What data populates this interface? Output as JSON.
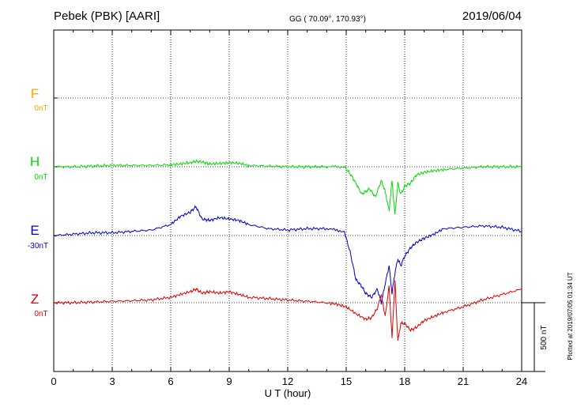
{
  "header": {
    "station": "Pebek (PBK)  [AARI]",
    "coords": "GG ( 70.09°, 170.93°)",
    "date": "2019/06/04"
  },
  "x_axis": {
    "label": "U T (hour)",
    "ticks": [
      "0",
      "3",
      "6",
      "9",
      "12",
      "15",
      "18",
      "21",
      "24"
    ]
  },
  "scale_bar": {
    "label": "500 nT",
    "value_nT": 500
  },
  "plotted_stamp": "Plotted at 2019/07/05 01:34 UT",
  "colors": {
    "F": "#FFA500",
    "H": "#00DD00",
    "E": "#0000CC",
    "Z": "#DD0000",
    "grid": "#000000"
  },
  "chart_data": {
    "type": "line",
    "title": "Pebek (PBK)  [AARI]",
    "xlabel": "U T (hour)",
    "ylabel": "",
    "xlim": [
      0,
      24
    ],
    "grid": true,
    "units": "nT",
    "series": [
      {
        "name": "F",
        "offset_label": "0nT",
        "color": "#FFA500",
        "baseline_nT": 0,
        "x": [],
        "values": []
      },
      {
        "name": "H",
        "offset_label": "0nT",
        "color": "#00DD00",
        "baseline_nT": 0,
        "x": [
          0,
          1,
          2,
          3,
          4,
          5,
          6,
          6.5,
          7,
          7.3,
          7.6,
          8,
          8.5,
          9,
          9.5,
          10,
          11,
          12,
          13,
          14,
          14.9,
          15.2,
          15.5,
          15.8,
          16,
          16.2,
          16.5,
          16.8,
          17,
          17.2,
          17.35,
          17.5,
          17.65,
          17.8,
          18,
          18.3,
          18.6,
          19,
          19.5,
          20,
          21,
          22,
          23,
          24
        ],
        "values": [
          0,
          0,
          5,
          10,
          10,
          10,
          15,
          20,
          30,
          40,
          35,
          20,
          25,
          30,
          25,
          10,
          5,
          0,
          0,
          0,
          0,
          -50,
          -120,
          -200,
          -180,
          -160,
          -220,
          -100,
          -180,
          -320,
          -100,
          -350,
          -120,
          -200,
          -140,
          -120,
          -60,
          -40,
          -30,
          -20,
          -10,
          0,
          0,
          0
        ]
      },
      {
        "name": "E",
        "offset_label": "-30nT",
        "color": "#0000CC",
        "baseline_nT": -30,
        "x": [
          0,
          1,
          2,
          3,
          4,
          5,
          6,
          6.5,
          7,
          7.3,
          7.6,
          8,
          8.5,
          9,
          9.5,
          10,
          11,
          12,
          13,
          14,
          14.9,
          15.2,
          15.5,
          15.8,
          16,
          16.3,
          16.6,
          16.8,
          17,
          17.2,
          17.35,
          17.5,
          17.65,
          17.8,
          18,
          18.3,
          18.6,
          19,
          19.5,
          20,
          21,
          22,
          23,
          24
        ],
        "values": [
          -30,
          -20,
          -10,
          -10,
          0,
          10,
          50,
          110,
          140,
          180,
          90,
          80,
          100,
          90,
          80,
          50,
          20,
          10,
          20,
          20,
          0,
          -150,
          -350,
          -400,
          -450,
          -480,
          -420,
          -520,
          -380,
          -250,
          -450,
          -300,
          -200,
          -250,
          -180,
          -120,
          -80,
          -50,
          -20,
          20,
          30,
          40,
          30,
          0
        ]
      },
      {
        "name": "Z",
        "offset_label": "0nT",
        "color": "#DD0000",
        "baseline_nT": 0,
        "x": [
          0,
          1,
          2,
          3,
          4,
          5,
          6,
          6.5,
          7,
          7.3,
          7.6,
          8,
          8.5,
          9,
          9.5,
          10,
          11,
          12,
          13,
          14,
          14.5,
          15,
          15.5,
          16,
          16.3,
          16.6,
          16.8,
          17,
          17.2,
          17.35,
          17.5,
          17.65,
          17.8,
          18,
          18.3,
          18.6,
          19,
          19.5,
          20,
          21,
          22,
          23,
          24
        ],
        "values": [
          0,
          0,
          5,
          10,
          15,
          20,
          40,
          60,
          80,
          100,
          70,
          80,
          70,
          80,
          60,
          40,
          30,
          20,
          10,
          0,
          -10,
          -30,
          -80,
          -120,
          -110,
          -40,
          60,
          -100,
          120,
          -260,
          160,
          -280,
          -150,
          -150,
          -200,
          -180,
          -130,
          -100,
          -70,
          -30,
          20,
          60,
          100
        ]
      }
    ]
  }
}
